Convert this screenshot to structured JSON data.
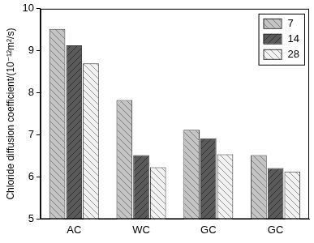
{
  "chart_data": {
    "type": "bar",
    "y_label": "Chloride diffusion coefficient/(10⁻¹²m²/s)",
    "categories": [
      "AC",
      "WC",
      "GC",
      "GC"
    ],
    "series": [
      {
        "name": "7",
        "color": "#c4c4c4",
        "values": [
          9.52,
          7.83,
          7.12,
          6.52
        ]
      },
      {
        "name": "14",
        "color": "#5a5a5a",
        "values": [
          9.13,
          6.52,
          6.92,
          6.21
        ]
      },
      {
        "name": "28",
        "color": "#f2f2f2",
        "values": [
          8.7,
          6.23,
          6.54,
          6.13
        ]
      }
    ],
    "ylim": [
      5,
      10
    ],
    "yticks": [
      5,
      6,
      7,
      8,
      9,
      10
    ],
    "grid": false,
    "legend": "top-right"
  }
}
